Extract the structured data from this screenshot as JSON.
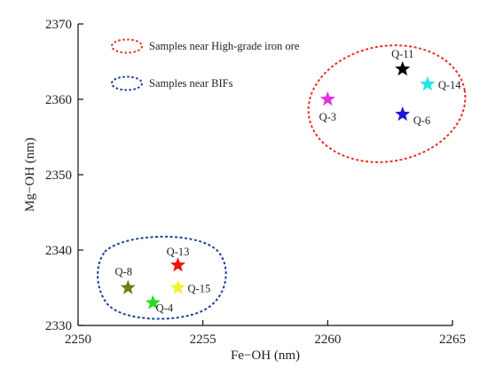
{
  "chart_data": {
    "type": "scatter",
    "xlabel": "Fe−OH (nm)",
    "ylabel": "Mg−OH (nm)",
    "xlim": [
      2250,
      2265
    ],
    "ylim": [
      2330,
      2370
    ],
    "xticks": [
      2250,
      2255,
      2260,
      2265
    ],
    "yticks": [
      2330,
      2340,
      2350,
      2360,
      2370
    ],
    "grid": false,
    "legend_position": "top-left",
    "legend": [
      {
        "label": "Samples near High-grade iron ore",
        "color": "#e8302a",
        "style": "dotted-ellipse"
      },
      {
        "label": "Samples near BIFs",
        "color": "#1f3f9a",
        "style": "dotted-ellipse"
      }
    ],
    "points": [
      {
        "label": "Q-11",
        "x": 2263.0,
        "y": 2364.0,
        "color": "#000000"
      },
      {
        "label": "Q-14",
        "x": 2264.0,
        "y": 2362.0,
        "color": "#22e6e6"
      },
      {
        "label": "Q-3",
        "x": 2260.0,
        "y": 2360.0,
        "color": "#e033e0"
      },
      {
        "label": "Q-6",
        "x": 2263.0,
        "y": 2358.0,
        "color": "#1a1ad6"
      },
      {
        "label": "Q-13",
        "x": 2254.0,
        "y": 2338.0,
        "color": "#ee1111"
      },
      {
        "label": "Q-8",
        "x": 2252.0,
        "y": 2335.0,
        "color": "#7a7a1a"
      },
      {
        "label": "Q-15",
        "x": 2254.0,
        "y": 2335.0,
        "color": "#f2f22a"
      },
      {
        "label": "Q-4",
        "x": 2253.0,
        "y": 2333.0,
        "color": "#22dd22"
      }
    ]
  }
}
